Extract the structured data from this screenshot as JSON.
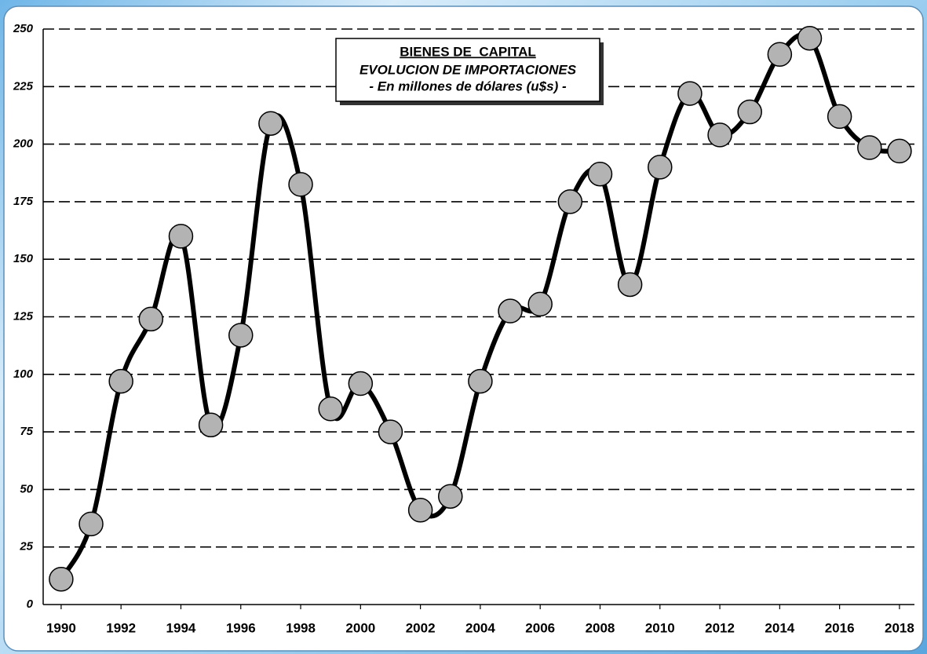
{
  "chart_data": {
    "type": "line",
    "title": "BIENES DE  CAPITAL",
    "subtitle": [
      "EVOLUCION DE IMPORTACIONES",
      "- En millones de dólares (u$s) -"
    ],
    "x": [
      1990,
      1991,
      1992,
      1993,
      1994,
      1995,
      1996,
      1997,
      1998,
      1999,
      2000,
      2001,
      2002,
      2003,
      2004,
      2005,
      2006,
      2007,
      2008,
      2009,
      2010,
      2011,
      2012,
      2013,
      2014,
      2015,
      2016,
      2017,
      2018
    ],
    "series": [
      {
        "color": "#000000",
        "marker_color": "#b3b3b3",
        "values": [
          11,
          35,
          97,
          124,
          160,
          78,
          117,
          209,
          182.5,
          85,
          96,
          75,
          41,
          47,
          97,
          127.5,
          130.5,
          175,
          187,
          139,
          190,
          222,
          204,
          214,
          239,
          246,
          212,
          198.5,
          197
        ]
      }
    ],
    "xlim": [
      1989.4,
      2018.5
    ],
    "xticks": [
      1990,
      1992,
      1994,
      1996,
      1998,
      2000,
      2002,
      2004,
      2006,
      2008,
      2010,
      2012,
      2014,
      2016,
      2018
    ],
    "ylim": [
      0,
      250
    ],
    "yticks": [
      0,
      25,
      50,
      75,
      100,
      125,
      150,
      175,
      200,
      225,
      250
    ],
    "grid": true
  }
}
